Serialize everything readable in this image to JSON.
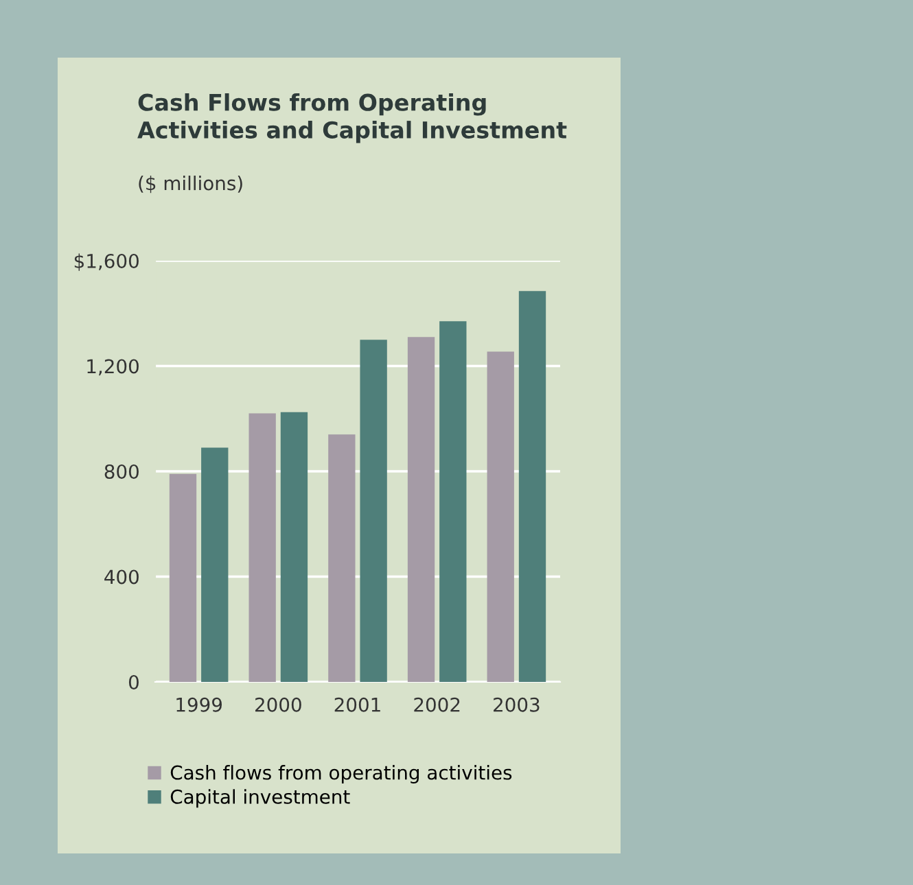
{
  "chart_data": {
    "type": "bar",
    "title": "Cash Flows from Operating\nActivities and Capital Investment",
    "subtitle": "($ millions)",
    "categories": [
      "1999",
      "2000",
      "2001",
      "2002",
      "2003"
    ],
    "series": [
      {
        "name": "Cash flows from operating activities",
        "color": "#a59ba6",
        "values": [
          790,
          1020,
          940,
          1310,
          1255
        ]
      },
      {
        "name": "Capital investment",
        "color": "#4f7f7a",
        "values": [
          890,
          1025,
          1300,
          1370,
          1485
        ]
      }
    ],
    "ylim": [
      0,
      1600
    ],
    "yticks": [
      0,
      400,
      800,
      {
        "value": 1200,
        "label": "1,200"
      },
      {
        "value": 1600,
        "label": "$1,600"
      }
    ],
    "grid": "y",
    "legend": "bottom"
  }
}
